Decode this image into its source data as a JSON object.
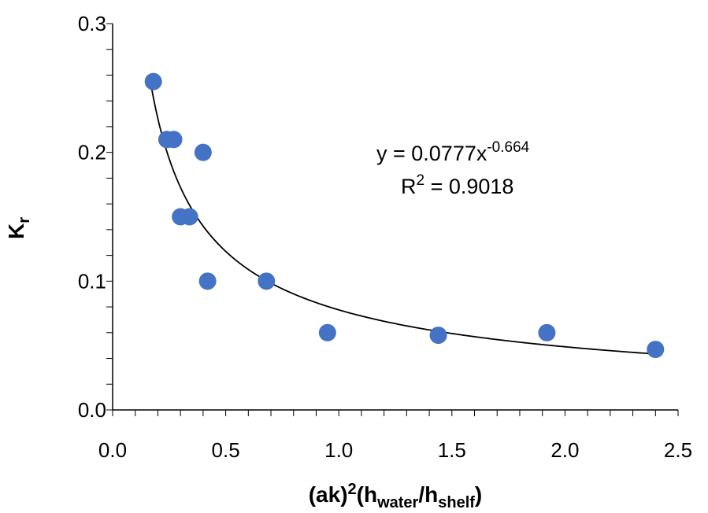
{
  "chart_data": {
    "type": "scatter",
    "title": "",
    "xlabel": {
      "main": "(ak)",
      "sup": "2",
      "paren_open": "(h",
      "sub1": "water",
      "slash": "/h",
      "sub2": "shelf",
      "paren_close": ")"
    },
    "ylabel": {
      "main": "K",
      "sub": "r"
    },
    "xlim": [
      0.0,
      2.5
    ],
    "ylim": [
      0.0,
      0.3
    ],
    "x_major_ticks": [
      "0.0",
      "0.5",
      "1.0",
      "1.5",
      "2.0",
      "2.5"
    ],
    "y_major_ticks": [
      "0.0",
      "0.1",
      "0.2",
      "0.3"
    ],
    "x_minor_step": 0.1,
    "y_minor_step": 0.02,
    "grid": false,
    "marker_color": "#4472C4",
    "trendline_color": "#000000",
    "points": [
      {
        "x": 0.18,
        "y": 0.255
      },
      {
        "x": 0.24,
        "y": 0.21
      },
      {
        "x": 0.27,
        "y": 0.21
      },
      {
        "x": 0.3,
        "y": 0.15
      },
      {
        "x": 0.34,
        "y": 0.15
      },
      {
        "x": 0.4,
        "y": 0.2
      },
      {
        "x": 0.42,
        "y": 0.1
      },
      {
        "x": 0.68,
        "y": 0.1
      },
      {
        "x": 0.95,
        "y": 0.06
      },
      {
        "x": 1.44,
        "y": 0.058
      },
      {
        "x": 1.92,
        "y": 0.06
      },
      {
        "x": 2.4,
        "y": 0.047
      }
    ],
    "trendline": {
      "type": "power",
      "coefficient": 0.0777,
      "exponent": -0.664,
      "x_range": [
        0.17,
        2.4
      ]
    },
    "annotation": {
      "eq_prefix": "y = 0.0777x",
      "eq_exp": "-0.664",
      "r2_prefix": "R",
      "r2_sup": "2",
      "r2_suffix": " = 0.9018"
    }
  }
}
